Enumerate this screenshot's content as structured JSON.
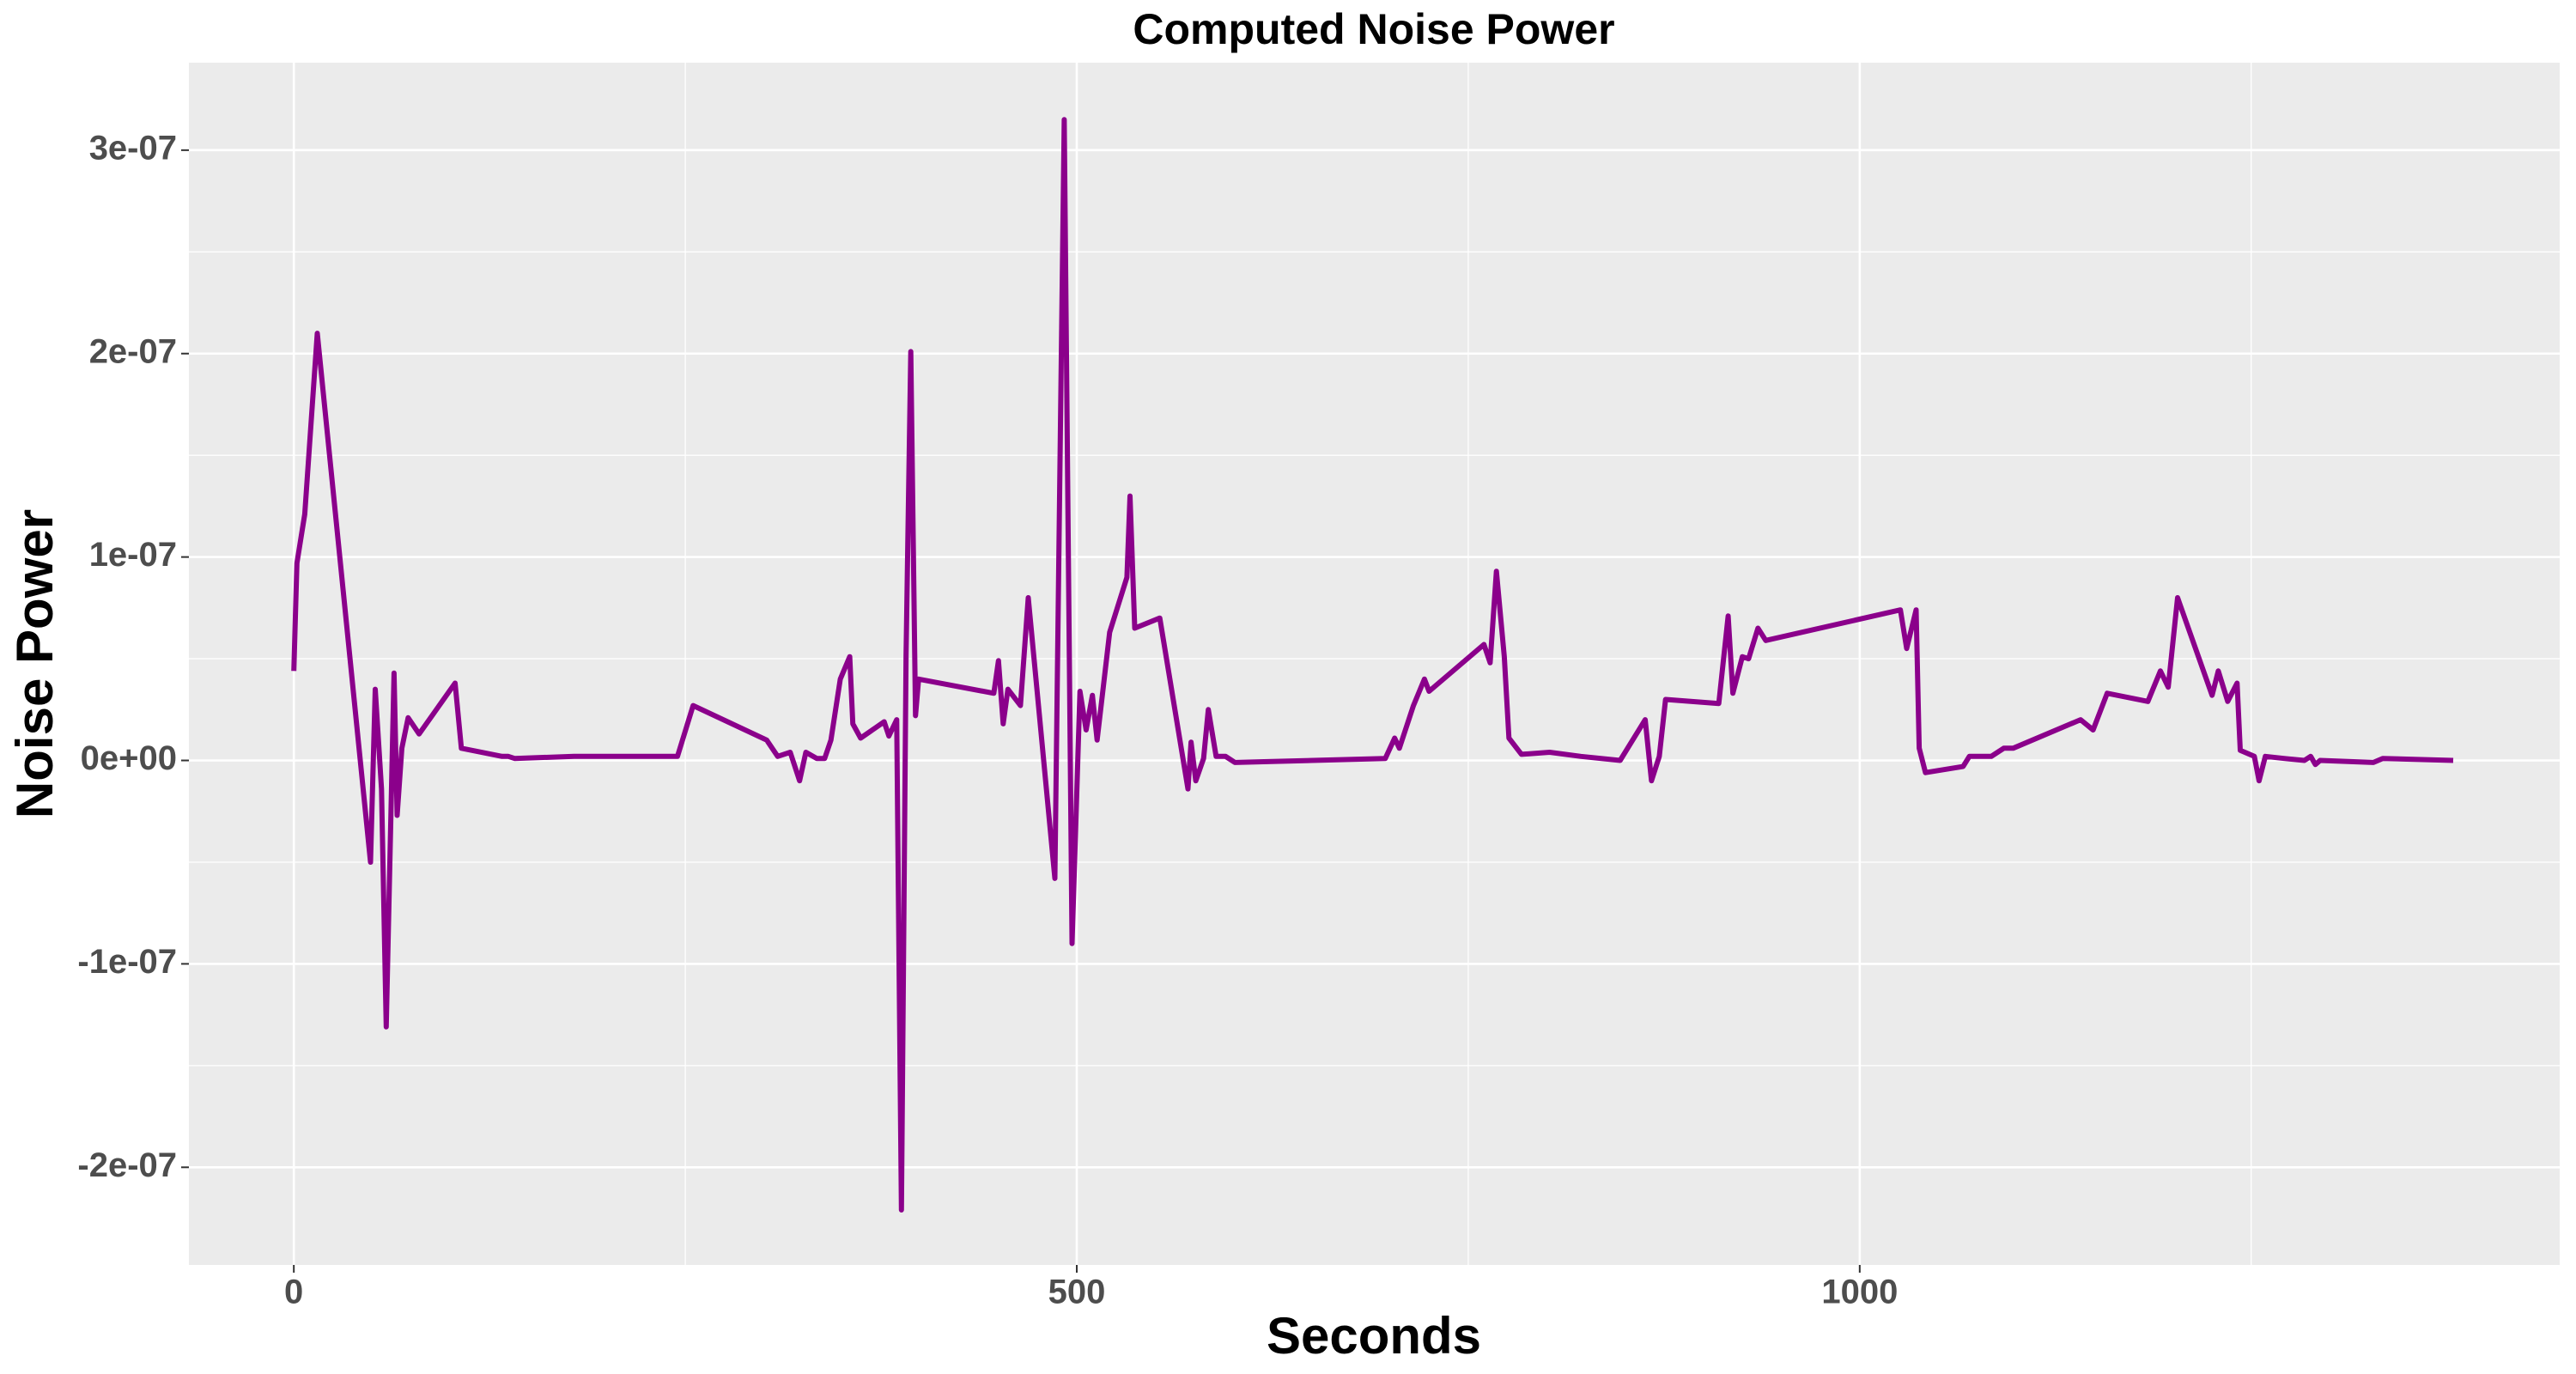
{
  "chart_data": {
    "type": "line",
    "title": "Computed Noise Power",
    "x_label": "Seconds",
    "y_label": "Noise Power",
    "x": [
      0,
      2,
      7,
      15,
      49,
      52,
      56,
      59,
      64,
      66,
      69,
      73,
      80,
      103,
      107,
      133,
      137,
      141,
      179,
      245,
      255,
      302,
      309,
      317,
      323,
      327,
      334,
      339,
      343,
      349,
      355,
      357,
      362,
      377,
      380,
      385,
      388,
      391,
      394,
      397,
      399,
      447,
      450,
      453,
      456,
      464,
      469,
      486,
      492,
      497,
      502,
      506,
      510,
      513,
      521,
      532,
      534,
      537,
      553,
      571,
      573,
      576,
      581,
      584,
      589,
      595,
      601,
      697,
      703,
      706,
      715,
      722,
      725,
      760,
      764,
      768,
      773,
      776,
      784,
      802,
      822,
      847,
      863,
      867,
      872,
      876,
      910,
      916,
      919,
      925,
      929,
      935,
      940,
      1026,
      1030,
      1036,
      1038,
      1042,
      1066,
      1070,
      1084,
      1092,
      1098,
      1141,
      1149,
      1158,
      1184,
      1192,
      1197,
      1203,
      1225,
      1229,
      1235,
      1241,
      1243,
      1252,
      1255,
      1259,
      1271,
      1284,
      1288,
      1291,
      1294,
      1328,
      1334,
      1379
    ],
    "series": [
      {
        "name": "Noise Power",
        "color": "#8b008b",
        "values": [
          4.4e-08,
          9.7e-08,
          1.21e-07,
          2.1e-07,
          -5e-08,
          3.5e-08,
          -1.4e-08,
          -1.31e-07,
          4.3e-08,
          -2.7e-08,
          6e-09,
          2.1e-08,
          1.3e-08,
          3.8e-08,
          6e-09,
          2e-09,
          2e-09,
          1e-09,
          2e-09,
          2e-09,
          2.7e-08,
          1e-08,
          2e-09,
          4e-09,
          -1e-08,
          4e-09,
          1e-09,
          1e-09,
          1e-08,
          4e-08,
          5.1e-08,
          1.8e-08,
          1.1e-08,
          1.9e-08,
          1.2e-08,
          2e-08,
          -2.21e-07,
          5.2e-08,
          2.01e-07,
          2.2e-08,
          4e-08,
          3.3e-08,
          4.9e-08,
          1.8e-08,
          3.5e-08,
          2.7e-08,
          8e-08,
          -5.8e-08,
          3.15e-07,
          -9e-08,
          3.4e-08,
          1.5e-08,
          3.2e-08,
          1e-08,
          6.3e-08,
          9e-08,
          1.3e-07,
          6.5e-08,
          7e-08,
          -1.4e-08,
          9e-09,
          -1e-08,
          1e-09,
          2.5e-08,
          2e-09,
          2e-09,
          -1e-09,
          1e-09,
          1.1e-08,
          6e-09,
          2.7e-08,
          4e-08,
          3.4e-08,
          5.7e-08,
          4.8e-08,
          9.3e-08,
          5.1e-08,
          1.1e-08,
          3e-09,
          4e-09,
          2e-09,
          0,
          2e-08,
          -1e-08,
          2e-09,
          3e-08,
          2.8e-08,
          7.1e-08,
          3.3e-08,
          5.1e-08,
          5e-08,
          6.5e-08,
          5.9e-08,
          7.4e-08,
          5.5e-08,
          7.4e-08,
          6e-09,
          -6e-09,
          -3e-09,
          2e-09,
          2e-09,
          6e-09,
          6e-09,
          2e-08,
          1.5e-08,
          3.3e-08,
          2.9e-08,
          4.4e-08,
          3.6e-08,
          8e-08,
          3.2e-08,
          4.4e-08,
          2.9e-08,
          3.8e-08,
          5e-09,
          2e-09,
          -1e-08,
          2e-09,
          1e-09,
          0,
          2e-09,
          -2e-09,
          0,
          -1e-09,
          1e-09,
          0
        ]
      }
    ],
    "xlim": [
      -67,
      1447
    ],
    "xticks": [
      0,
      500,
      1000
    ],
    "ylim": [
      -2.48e-07,
      3.43e-07
    ],
    "yticks": [
      {
        "value": -2e-07,
        "label": "-2e-07"
      },
      {
        "value": -1e-07,
        "label": "-1e-07"
      },
      {
        "value": 0,
        "label": "0e+00"
      },
      {
        "value": 1e-07,
        "label": "1e-07"
      },
      {
        "value": 2e-07,
        "label": "2e-07"
      },
      {
        "value": 3e-07,
        "label": "3e-07"
      }
    ],
    "grid": true
  }
}
